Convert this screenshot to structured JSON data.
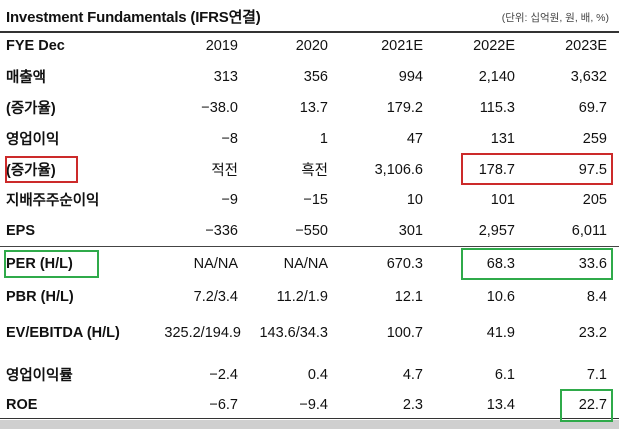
{
  "title": "Investment Fundamentals (IFRS연결)",
  "unit": "(단위: 십억원, 원, 배, %)",
  "header": {
    "label": "FYE Dec",
    "years": [
      "2019",
      "2020",
      "2021E",
      "2022E",
      "2023E"
    ]
  },
  "rows": [
    {
      "label": "매출액",
      "values": [
        "313",
        "356",
        "994",
        "2,140",
        "3,632"
      ]
    },
    {
      "label": "(증가율)",
      "values": [
        "−38.0",
        "13.7",
        "179.2",
        "115.3",
        "69.7"
      ]
    },
    {
      "label": "영업이익",
      "values": [
        "−8",
        "1",
        "47",
        "131",
        "259"
      ]
    },
    {
      "label": "(증가율)",
      "values": [
        "적전",
        "흑전",
        "3,106.6",
        "178.7",
        "97.5"
      ]
    },
    {
      "label": "지배주주순이익",
      "values": [
        "−9",
        "−15",
        "10",
        "101",
        "205"
      ]
    },
    {
      "label": "EPS",
      "values": [
        "−336",
        "−550",
        "301",
        "2,957",
        "6,011"
      ]
    },
    {
      "label": "PER (H/L)",
      "values": [
        "NA/NA",
        "NA/NA",
        "670.3",
        "68.3",
        "33.6"
      ]
    },
    {
      "label": "PBR (H/L)",
      "values": [
        "7.2/3.4",
        "11.2/1.9",
        "12.1",
        "10.6",
        "8.4"
      ]
    },
    {
      "label": "EV/EBITDA (H/L)",
      "values": [
        "325.2/194.9",
        "143.6/34.3",
        "100.7",
        "41.9",
        "23.2"
      ]
    },
    {
      "label": "영업이익률",
      "values": [
        "−2.4",
        "0.4",
        "4.7",
        "6.1",
        "7.1"
      ]
    },
    {
      "label": "ROE",
      "values": [
        "−6.7",
        "−9.4",
        "2.3",
        "13.4",
        "22.7"
      ]
    }
  ],
  "colors": {
    "highlight_red": "#cc2a2a",
    "highlight_green": "#2faa4a"
  }
}
